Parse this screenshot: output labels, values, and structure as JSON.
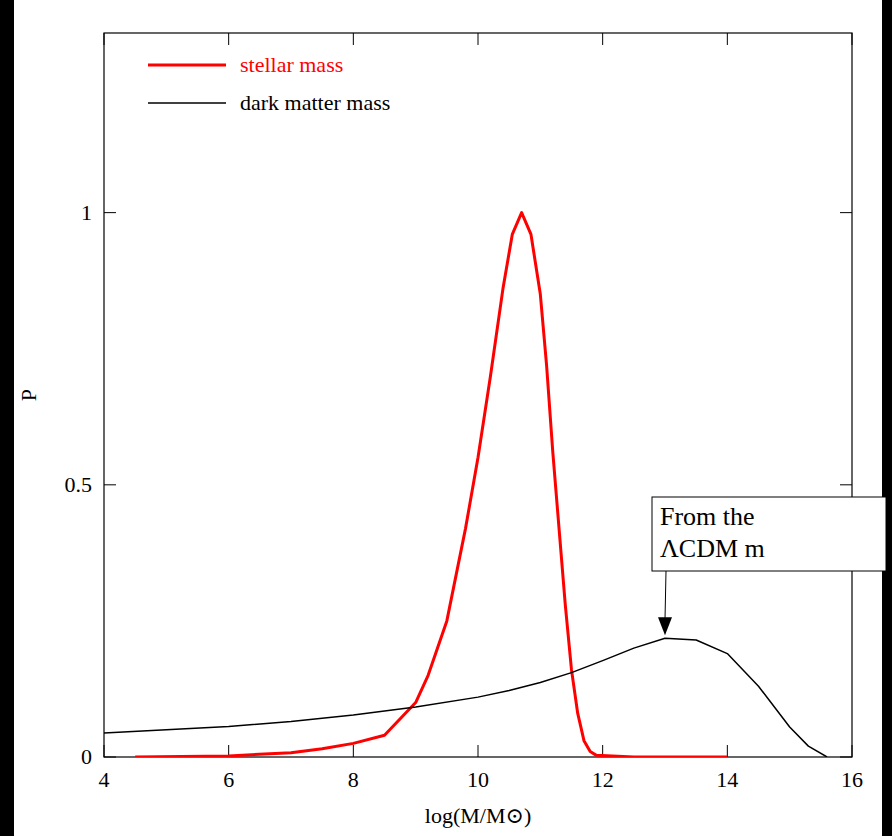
{
  "chart_data": {
    "type": "line",
    "xlabel": "log(M/M⊙)",
    "ylabel": "P",
    "xlim": [
      4,
      16
    ],
    "ylim": [
      0,
      1.33
    ],
    "xticks": [
      4,
      6,
      8,
      10,
      12,
      14,
      16
    ],
    "yticks": [
      0,
      0.5,
      1
    ],
    "legend": "top-left",
    "grid": false,
    "annotations": [
      "From the",
      "ΛCDM m"
    ],
    "series": [
      {
        "name": "stellar mass",
        "color": "#ff0000",
        "x": [
          4.5,
          6,
          7,
          7.5,
          8,
          8.5,
          9,
          9.2,
          9.5,
          9.8,
          10,
          10.2,
          10.4,
          10.55,
          10.7,
          10.85,
          11,
          11.1,
          11.2,
          11.3,
          11.4,
          11.5,
          11.6,
          11.7,
          11.8,
          11.9,
          12.5,
          14
        ],
        "values": [
          0,
          0.002,
          0.008,
          0.015,
          0.025,
          0.04,
          0.1,
          0.15,
          0.25,
          0.42,
          0.55,
          0.7,
          0.86,
          0.96,
          1.0,
          0.96,
          0.85,
          0.72,
          0.56,
          0.42,
          0.28,
          0.16,
          0.08,
          0.03,
          0.01,
          0.003,
          0,
          0
        ]
      },
      {
        "name": "dark matter mass",
        "color": "#000000",
        "x": [
          4,
          5,
          6,
          7,
          8,
          9,
          10,
          10.5,
          11,
          11.5,
          12,
          12.5,
          13,
          13.5,
          14,
          14.5,
          15,
          15.3,
          15.6
        ],
        "values": [
          0.044,
          0.05,
          0.056,
          0.065,
          0.077,
          0.092,
          0.11,
          0.122,
          0.137,
          0.155,
          0.177,
          0.2,
          0.218,
          0.215,
          0.19,
          0.13,
          0.055,
          0.02,
          0
        ]
      }
    ]
  }
}
